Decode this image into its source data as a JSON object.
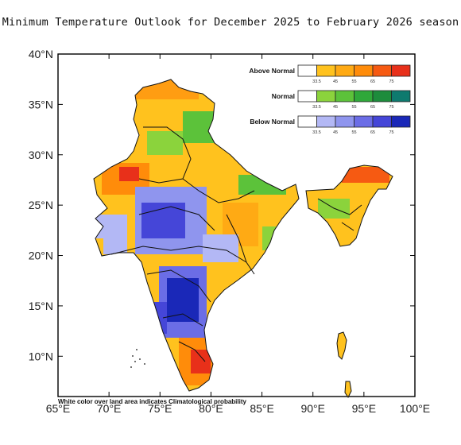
{
  "title": "Minimum Temperature Outlook for December 2025 to February 2026 season",
  "map": {
    "lon_labels": [
      "65°E",
      "70°E",
      "75°E",
      "80°E",
      "85°E",
      "90°E",
      "95°E",
      "100°E"
    ],
    "lat_labels": [
      "40°N",
      "35°N",
      "30°N",
      "25°N",
      "20°N",
      "15°N",
      "10°N"
    ],
    "lon_range": [
      65,
      100
    ],
    "lat_range": [
      6,
      40
    ],
    "note": "White color over land area indicates Climatological probability"
  },
  "legend": [
    {
      "title": "Above Normal",
      "ticks": [
        "33.5",
        "45",
        "55",
        "65",
        "75"
      ],
      "colors": [
        "#ffffff",
        "#ffc21e",
        "#ffaa14",
        "#ff8c0a",
        "#f65a12",
        "#e8301a"
      ]
    },
    {
      "title": "Normal",
      "ticks": [
        "33.5",
        "45",
        "55",
        "65",
        "75"
      ],
      "colors": [
        "#ffffff",
        "#8bd33c",
        "#5cc23a",
        "#2fa83a",
        "#1d8c3c",
        "#0e7a6e"
      ]
    },
    {
      "title": "Below Normal",
      "ticks": [
        "33.5",
        "45",
        "55",
        "65",
        "75"
      ],
      "colors": [
        "#ffffff",
        "#b3b8f5",
        "#8f95ee",
        "#6b6de6",
        "#4546d8",
        "#1a28b8"
      ]
    }
  ]
}
